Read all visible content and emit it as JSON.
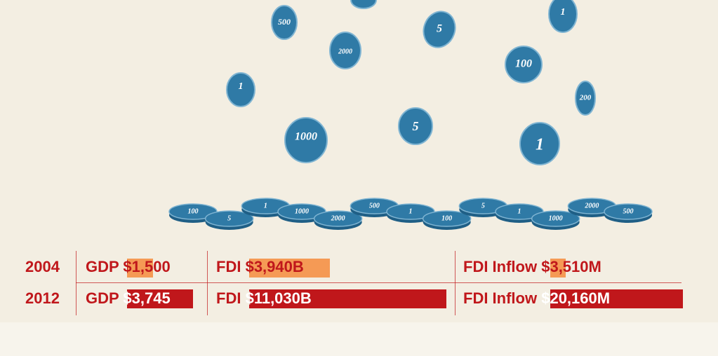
{
  "coins": [
    "500",
    "5",
    "2000",
    "1",
    "100",
    "1",
    "200",
    "1000",
    "5",
    "1"
  ],
  "stack": [
    "100",
    "5",
    "1",
    "1000",
    "2000",
    "500",
    "1",
    "100",
    "5",
    "1",
    "1000",
    "2000",
    "500"
  ],
  "rows": [
    {
      "year": "2004",
      "gdp_label": "GDP",
      "gdp": "$1,500",
      "fdi_label": "FDI",
      "fdi": "$3,940B",
      "inflow_label": "FDI Inflow",
      "inflow": "$3,510M"
    },
    {
      "year": "2012",
      "gdp_label": "GDP",
      "gdp": "$3,745",
      "fdi_label": "FDI",
      "fdi": "$11,030B",
      "inflow_label": "FDI Inflow",
      "inflow": "$20,160M"
    }
  ]
}
